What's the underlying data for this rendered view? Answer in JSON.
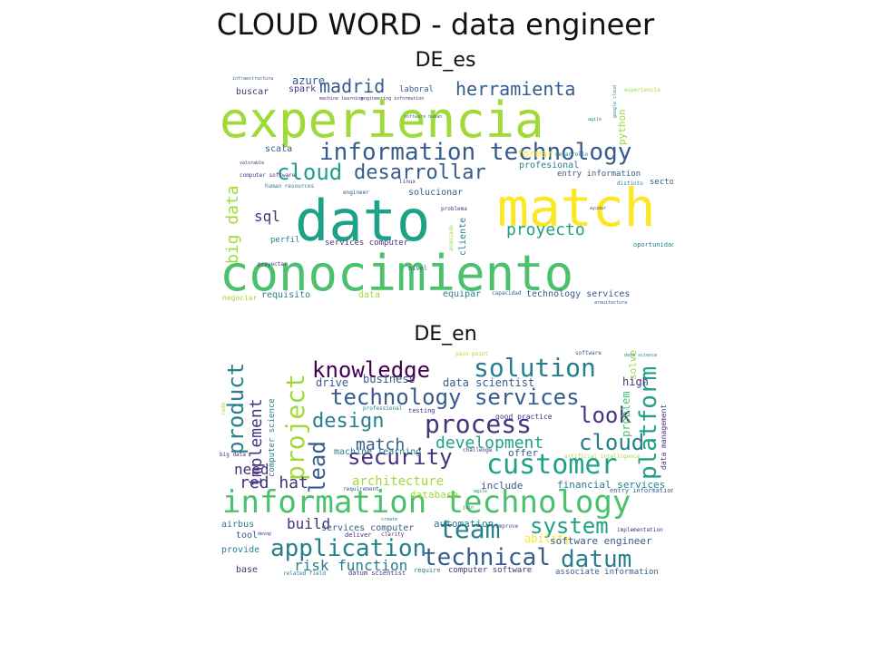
{
  "figure": {
    "title": "CLOUD WORD - data engineer"
  },
  "palette": {
    "purple": "#440154",
    "indigo": "#46327e",
    "blue": "#365c8d",
    "teal": "#277f8e",
    "green_teal": "#1fa187",
    "green": "#4ac16d",
    "lime": "#a0da39",
    "yellow": "#fde725"
  },
  "clouds": [
    {
      "title": "DE_es",
      "words": [
        {
          "text": "experiencia",
          "color": "lime"
        },
        {
          "text": "dato",
          "color": "green_teal"
        },
        {
          "text": "match",
          "color": "yellow"
        },
        {
          "text": "conocimiento",
          "color": "green"
        },
        {
          "text": "information technology",
          "color": "blue"
        },
        {
          "text": "cloud",
          "color": "green_teal"
        },
        {
          "text": "desarrollar",
          "color": "blue"
        },
        {
          "text": "madrid",
          "color": "blue"
        },
        {
          "text": "herramienta",
          "color": "blue"
        },
        {
          "text": "proyecto",
          "color": "green_teal"
        },
        {
          "text": "big data",
          "color": "lime"
        },
        {
          "text": "sql",
          "color": "indigo"
        },
        {
          "text": "azure",
          "color": "blue"
        },
        {
          "text": "spark",
          "color": "indigo"
        },
        {
          "text": "python",
          "color": "lime"
        },
        {
          "text": "scala",
          "color": "blue"
        },
        {
          "text": "buscar",
          "color": "indigo"
        },
        {
          "text": "laboral",
          "color": "blue"
        },
        {
          "text": "profesional",
          "color": "teal"
        },
        {
          "text": "formar",
          "color": "yellow"
        },
        {
          "text": "entry information",
          "color": "blue"
        },
        {
          "text": "solucionar",
          "color": "blue"
        },
        {
          "text": "cliente",
          "color": "teal"
        },
        {
          "text": "perfil",
          "color": "teal"
        },
        {
          "text": "services computer",
          "color": "indigo"
        },
        {
          "text": "requisito",
          "color": "teal"
        },
        {
          "text": "data",
          "color": "lime"
        },
        {
          "text": "equipar",
          "color": "teal"
        },
        {
          "text": "technology services",
          "color": "blue"
        },
        {
          "text": "sector",
          "color": "blue"
        },
        {
          "text": "infraestructura",
          "color": "blue"
        },
        {
          "text": "machine learning",
          "color": "indigo"
        },
        {
          "text": "engineering information",
          "color": "indigo"
        },
        {
          "text": "software human",
          "color": "teal"
        },
        {
          "text": "desarrollo",
          "color": "teal"
        },
        {
          "text": "agile",
          "color": "teal"
        },
        {
          "text": "google cloud",
          "color": "teal"
        },
        {
          "text": "experiencia",
          "color": "lime"
        },
        {
          "text": "human resources",
          "color": "teal"
        },
        {
          "text": "engineer",
          "color": "blue"
        },
        {
          "text": "linux",
          "color": "indigo"
        },
        {
          "text": "problema",
          "color": "indigo"
        },
        {
          "text": "avanzado",
          "color": "lime"
        },
        {
          "text": "proyectar",
          "color": "indigo"
        },
        {
          "text": "computer software",
          "color": "indigo"
        },
        {
          "text": "valorable",
          "color": "indigo"
        },
        {
          "text": "negociar",
          "color": "lime"
        },
        {
          "text": "capacidad",
          "color": "blue"
        },
        {
          "text": "nivel",
          "color": "blue"
        },
        {
          "text": "oportunidad",
          "color": "teal"
        },
        {
          "text": "ayudar",
          "color": "blue"
        },
        {
          "text": "distinto",
          "color": "teal"
        },
        {
          "text": "arquitectura",
          "color": "blue"
        }
      ]
    },
    {
      "title": "DE_en",
      "words": [
        {
          "text": "information technology",
          "color": "green"
        },
        {
          "text": "solution",
          "color": "teal"
        },
        {
          "text": "knowledge",
          "color": "purple"
        },
        {
          "text": "technology services",
          "color": "blue"
        },
        {
          "text": "process",
          "color": "indigo"
        },
        {
          "text": "look",
          "color": "indigo"
        },
        {
          "text": "design",
          "color": "teal"
        },
        {
          "text": "customer",
          "color": "green_teal"
        },
        {
          "text": "security",
          "color": "indigo"
        },
        {
          "text": "cloud",
          "color": "teal"
        },
        {
          "text": "development",
          "color": "green_teal"
        },
        {
          "text": "platform",
          "color": "green_teal"
        },
        {
          "text": "product",
          "color": "teal"
        },
        {
          "text": "project",
          "color": "lime"
        },
        {
          "text": "lead",
          "color": "blue"
        },
        {
          "text": "implement",
          "color": "indigo"
        },
        {
          "text": "team",
          "color": "teal"
        },
        {
          "text": "system",
          "color": "green_teal"
        },
        {
          "text": "application",
          "color": "teal"
        },
        {
          "text": "technical",
          "color": "blue"
        },
        {
          "text": "datum",
          "color": "teal"
        },
        {
          "text": "match",
          "color": "blue"
        },
        {
          "text": "need",
          "color": "indigo"
        },
        {
          "text": "red hat",
          "color": "indigo"
        },
        {
          "text": "architecture",
          "color": "lime"
        },
        {
          "text": "build",
          "color": "indigo"
        },
        {
          "text": "risk function",
          "color": "teal"
        },
        {
          "text": "business",
          "color": "blue"
        },
        {
          "text": "drive",
          "color": "blue"
        },
        {
          "text": "data scientist",
          "color": "blue"
        },
        {
          "text": "high",
          "color": "indigo"
        },
        {
          "text": "machine learning",
          "color": "teal"
        },
        {
          "text": "offer",
          "color": "blue"
        },
        {
          "text": "include",
          "color": "blue"
        },
        {
          "text": "financial services",
          "color": "teal"
        },
        {
          "text": "database",
          "color": "lime"
        },
        {
          "text": "automation",
          "color": "teal"
        },
        {
          "text": "ability",
          "color": "yellow"
        },
        {
          "text": "software engineer",
          "color": "blue"
        },
        {
          "text": "services computer",
          "color": "blue"
        },
        {
          "text": "airbus",
          "color": "teal"
        },
        {
          "text": "tool",
          "color": "blue"
        },
        {
          "text": "provide",
          "color": "teal"
        },
        {
          "text": "base",
          "color": "indigo"
        },
        {
          "text": "computer science",
          "color": "teal"
        },
        {
          "text": "problem",
          "color": "green"
        },
        {
          "text": "solve",
          "color": "lime"
        },
        {
          "text": "data management",
          "color": "indigo"
        },
        {
          "text": "good practice",
          "color": "indigo"
        },
        {
          "text": "testing",
          "color": "indigo"
        },
        {
          "text": "professional",
          "color": "teal"
        },
        {
          "text": "computer software",
          "color": "indigo"
        },
        {
          "text": "associate information",
          "color": "blue"
        },
        {
          "text": "datum scientist",
          "color": "indigo"
        },
        {
          "text": "related field",
          "color": "teal"
        },
        {
          "text": "require",
          "color": "teal"
        },
        {
          "text": "entry information",
          "color": "blue"
        },
        {
          "text": "artificial intelligence",
          "color": "lime"
        },
        {
          "text": "implementation",
          "color": "indigo"
        },
        {
          "text": "software",
          "color": "blue"
        },
        {
          "text": "pain point",
          "color": "lime"
        },
        {
          "text": "challenge",
          "color": "indigo"
        },
        {
          "text": "big data",
          "color": "indigo"
        },
        {
          "text": "requirement",
          "color": "blue"
        },
        {
          "text": "agile",
          "color": "teal"
        },
        {
          "text": "improve",
          "color": "blue"
        },
        {
          "text": "deliver",
          "color": "indigo"
        },
        {
          "text": "clarity",
          "color": "indigo"
        },
        {
          "text": "create",
          "color": "teal"
        },
        {
          "text": "code",
          "color": "lime"
        },
        {
          "text": "devop",
          "color": "indigo"
        },
        {
          "text": "join",
          "color": "teal"
        },
        {
          "text": "data science",
          "color": "teal"
        }
      ]
    }
  ]
}
